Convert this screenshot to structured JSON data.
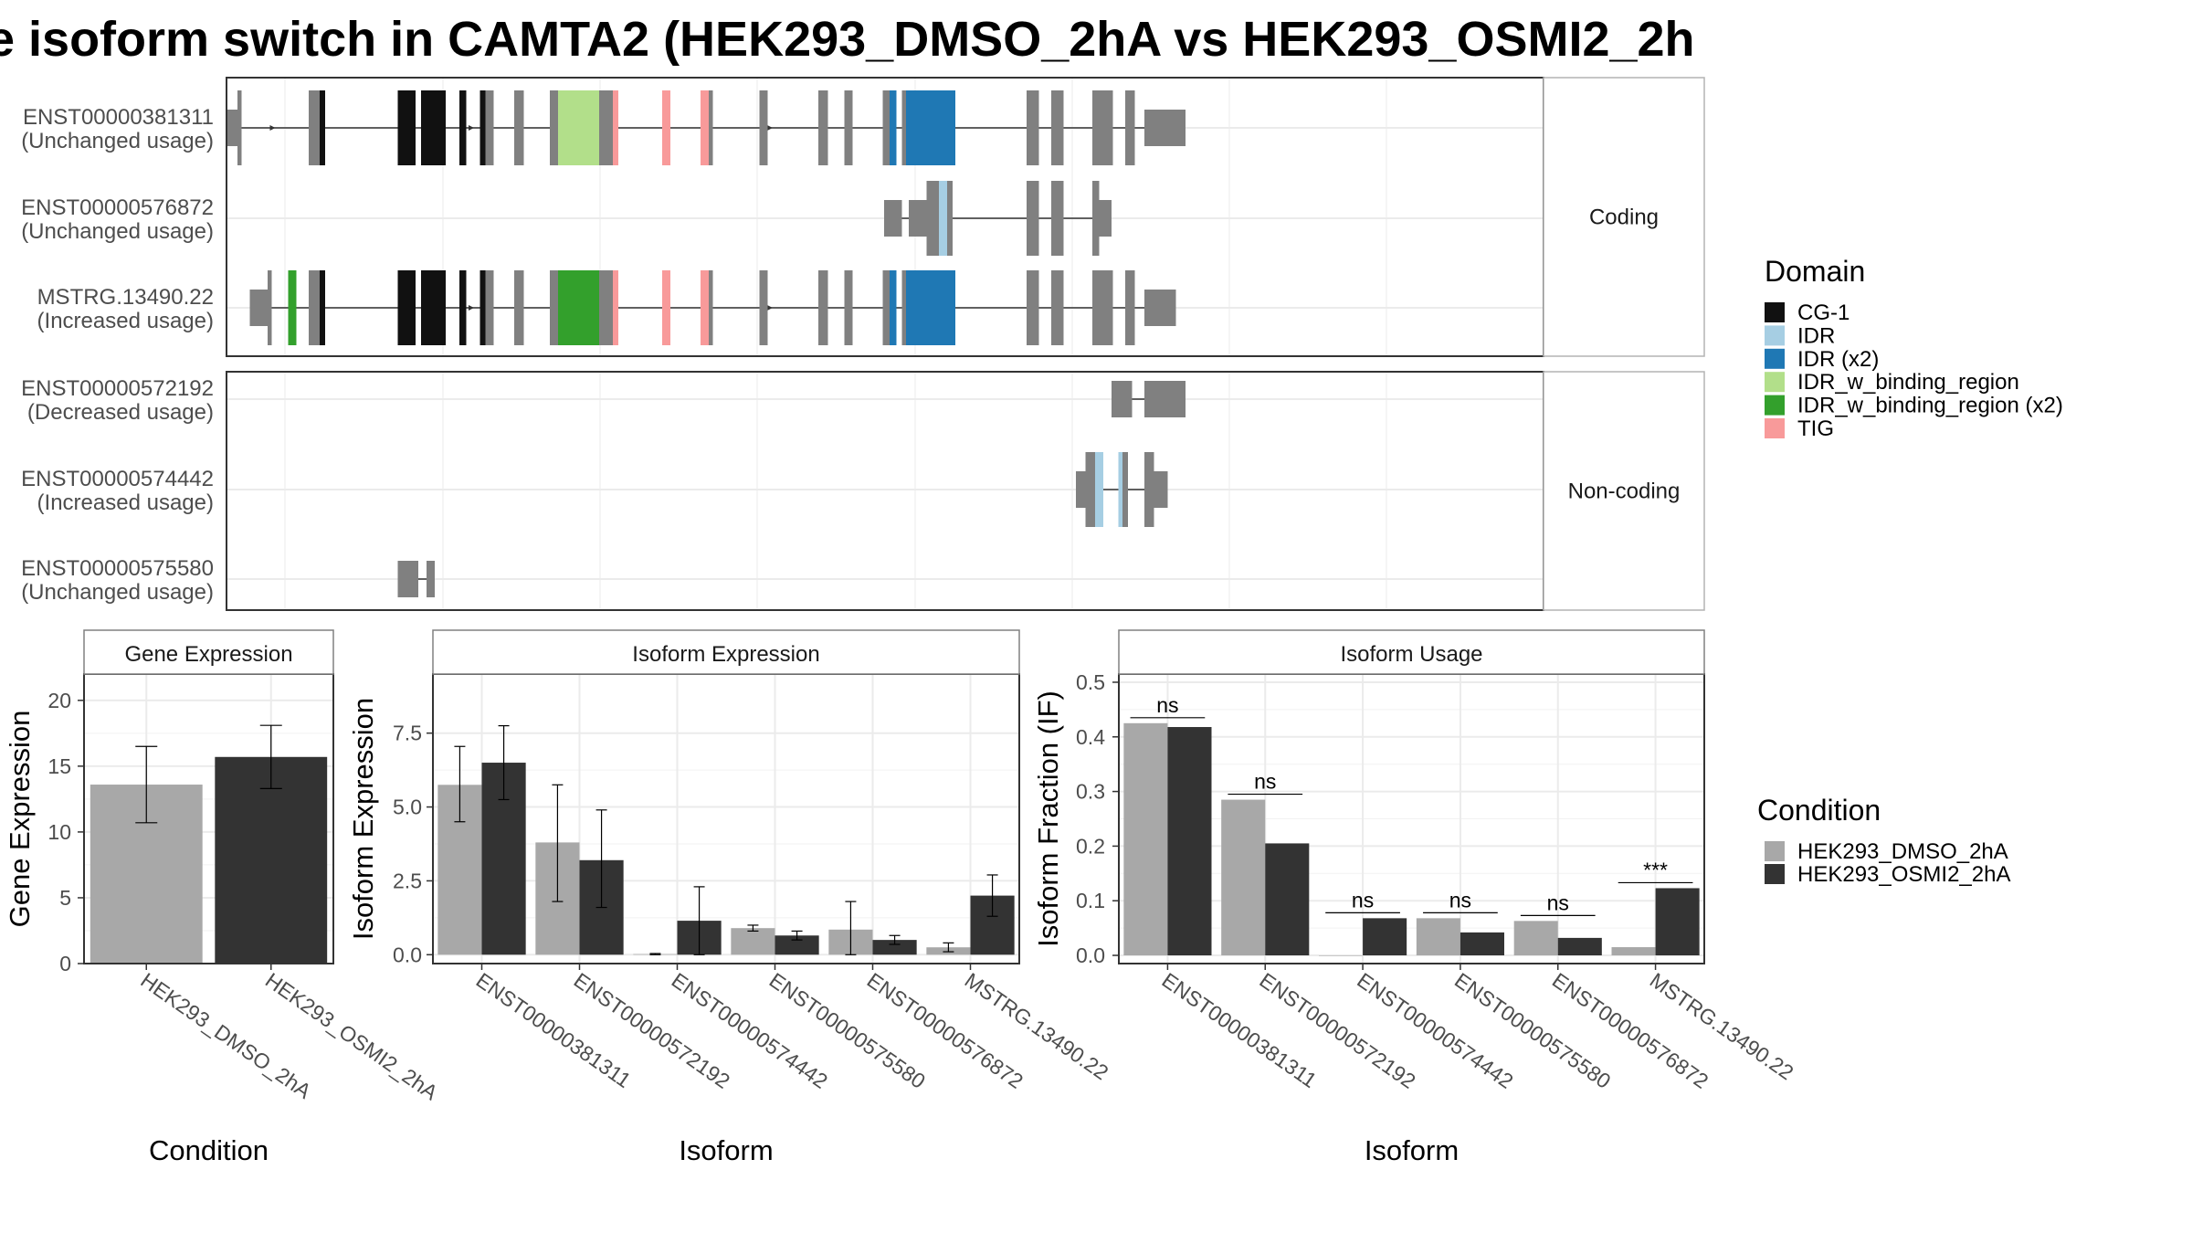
{
  "title": "e isoform switch in CAMTA2 (HEK293_DMSO_2hA vs HEK293_OSMI2_2h",
  "structure": {
    "panels": [
      {
        "label": "Coding",
        "tracks": [
          {
            "name": "ENST00000381311",
            "usage": "(Unchanged usage)"
          },
          {
            "name": "ENST00000576872",
            "usage": "(Unchanged usage)"
          },
          {
            "name": "MSTRG.13490.22",
            "usage": "(Increased usage)"
          }
        ]
      },
      {
        "label": "Non-coding",
        "tracks": [
          {
            "name": "ENST00000572192",
            "usage": "(Decreased usage)"
          },
          {
            "name": "ENST00000574442",
            "usage": "(Increased usage)"
          },
          {
            "name": "ENST00000575580",
            "usage": "(Unchanged usage)"
          }
        ]
      }
    ],
    "domain_legend": {
      "title": "Domain",
      "items": [
        {
          "label": "CG-1",
          "color": "#111111"
        },
        {
          "label": "IDR",
          "color": "#a6cee3"
        },
        {
          "label": "IDR (x2)",
          "color": "#1f78b4"
        },
        {
          "label": "IDR_w_binding_region",
          "color": "#b2df8a"
        },
        {
          "label": "IDR_w_binding_region (x2)",
          "color": "#33a02c"
        },
        {
          "label": "TIG",
          "color": "#f89a9a"
        }
      ]
    }
  },
  "chart_data": [
    {
      "type": "bar",
      "title": "Gene Expression",
      "xlabel": "Condition",
      "ylabel": "Gene Expression",
      "categories": [
        "HEK293_DMSO_2hA",
        "HEK293_OSMI2_2hA"
      ],
      "values": [
        13.6,
        15.7
      ],
      "errors": [
        [
          10.7,
          16.5
        ],
        [
          13.3,
          18.1
        ]
      ],
      "colors": [
        "#a8a8a8",
        "#333333"
      ],
      "ylim": [
        0,
        22
      ],
      "yticks": [
        0,
        5,
        10,
        15,
        20
      ]
    },
    {
      "type": "bar",
      "title": "Isoform Expression",
      "xlabel": "Isoform",
      "ylabel": "Isoform Expression",
      "categories": [
        "ENST00000381311",
        "ENST00000572192",
        "ENST00000574442",
        "ENST00000575580",
        "ENST00000576872",
        "MSTRG.13490.22"
      ],
      "series": [
        {
          "name": "HEK293_DMSO_2hA",
          "color": "#a8a8a8",
          "values": [
            5.75,
            3.8,
            0.02,
            0.9,
            0.85,
            0.25
          ],
          "errors": [
            [
              4.5,
              7.05
            ],
            [
              1.8,
              5.75
            ],
            [
              0.0,
              0.04
            ],
            [
              0.8,
              1.0
            ],
            [
              0.0,
              1.8
            ],
            [
              0.1,
              0.4
            ]
          ]
        },
        {
          "name": "HEK293_OSMI2_2hA",
          "color": "#333333",
          "values": [
            6.5,
            3.2,
            1.15,
            0.65,
            0.5,
            2.0
          ],
          "errors": [
            [
              5.25,
              7.75
            ],
            [
              1.6,
              4.9
            ],
            [
              0.0,
              2.3
            ],
            [
              0.5,
              0.8
            ],
            [
              0.35,
              0.65
            ],
            [
              1.3,
              2.7
            ]
          ]
        }
      ],
      "ylim": [
        -0.3,
        9.5
      ],
      "yticks": [
        0.0,
        2.5,
        5.0,
        7.5
      ]
    },
    {
      "type": "bar",
      "title": "Isoform Usage",
      "xlabel": "Isoform",
      "ylabel": "Isoform Fraction (IF)",
      "categories": [
        "ENST00000381311",
        "ENST00000572192",
        "ENST00000574442",
        "ENST00000575580",
        "ENST00000576872",
        "MSTRG.13490.22"
      ],
      "series": [
        {
          "name": "HEK293_DMSO_2hA",
          "color": "#a8a8a8",
          "values": [
            0.425,
            0.285,
            0.0,
            0.068,
            0.063,
            0.015
          ]
        },
        {
          "name": "HEK293_OSMI2_2hA",
          "color": "#333333",
          "values": [
            0.418,
            0.205,
            0.068,
            0.042,
            0.032,
            0.123
          ]
        }
      ],
      "significance": [
        "ns",
        "ns",
        "ns",
        "ns",
        "ns",
        "***"
      ],
      "ylim": [
        -0.015,
        0.515
      ],
      "yticks": [
        0.0,
        0.1,
        0.2,
        0.3,
        0.4,
        0.5
      ]
    }
  ],
  "condition_legend": {
    "title": "Condition",
    "items": [
      {
        "label": "HEK293_DMSO_2hA",
        "color": "#a8a8a8"
      },
      {
        "label": "HEK293_OSMI2_2hA",
        "color": "#333333"
      }
    ]
  }
}
